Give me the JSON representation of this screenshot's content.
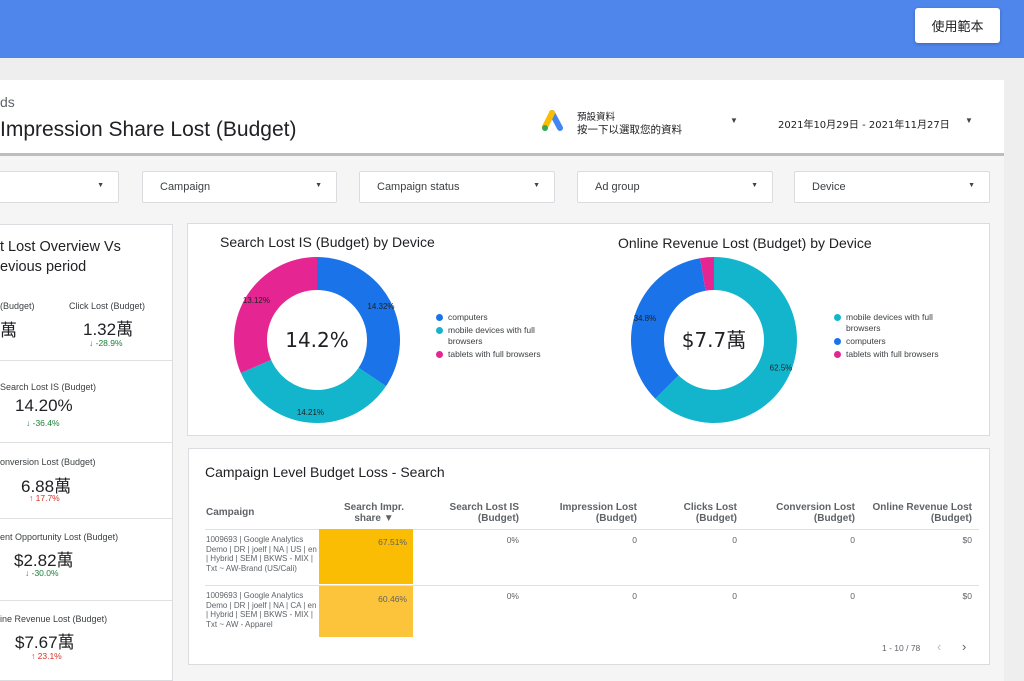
{
  "topbar": {
    "template_button": "使用範本"
  },
  "header": {
    "breadcrumb": "ds",
    "title": "Impression Share Lost (Budget)",
    "data_source": {
      "line1": "預設資料",
      "line2": "按一下以選取您的資料"
    },
    "date_range": "2021年10月29日 - 2021年11月27日"
  },
  "filters": [
    "",
    "Campaign",
    "Campaign status",
    "Ad group",
    "Device"
  ],
  "overview": {
    "title_lines": [
      "t Lost Overview Vs",
      "evious period"
    ],
    "scorecards": [
      {
        "label": "(Budget)",
        "value": "萬",
        "change": "",
        "direction": ""
      },
      {
        "label": "Click Lost (Budget)",
        "value": "1.32萬",
        "change": "-28.9%",
        "direction": "down"
      },
      {
        "label": "Search Lost IS (Budget)",
        "value": "14.20%",
        "change": "-36.4%",
        "direction": "down"
      },
      {
        "label": "onversion Lost (Budget)",
        "value": "6.88萬",
        "change": "17.7%",
        "direction": "up"
      },
      {
        "label": "ent Opportunity Lost (Budget)",
        "value": "$2.82萬",
        "change": "-30.0%",
        "direction": "down"
      },
      {
        "label": "ine Revenue Lost (Budget)",
        "value": "$7.67萬",
        "change": "23.1%",
        "direction": "up"
      }
    ]
  },
  "chart_data": [
    {
      "type": "pie",
      "title": "Search Lost IS (Budget) by Device",
      "center_label": "14.2%",
      "categories": [
        "computers",
        "mobile devices with full browsers",
        "tablets with full browsers"
      ],
      "values": [
        14.32,
        14.21,
        13.12
      ],
      "slice_labels": [
        "14.32%",
        "14.21%",
        "13.12%"
      ],
      "colors": [
        "#1a73e8",
        "#12b5cb",
        "#e52592"
      ],
      "legend": "right"
    },
    {
      "type": "pie",
      "title": "Online Revenue  Lost (Budget) by Device",
      "center_label": "$7.7萬",
      "categories": [
        "mobile devices with full browsers",
        "computers",
        "tablets with full browsers"
      ],
      "values": [
        62.5,
        34.8,
        2.7
      ],
      "slice_labels": [
        "62.5%",
        "34.8%",
        ""
      ],
      "colors": [
        "#12b5cb",
        "#1a73e8",
        "#e52592"
      ],
      "legend": "right"
    }
  ],
  "table": {
    "title": "Campaign Level Budget Loss - Search",
    "columns": [
      "Campaign",
      "Search Impr. share ▼",
      "Search Lost IS (Budget)",
      "Impression Lost (Budget)",
      "Clicks Lost (Budget)",
      "Conversion Lost (Budget)",
      "Online Revenue Lost (Budget)"
    ],
    "rows": [
      {
        "campaign": "1009693 | Google Analytics Demo | DR | joelf | NA | US | en | Hybrid | SEM | BKWS - MIX | Txt ~ AW-Brand (US/Cali)",
        "share": "67.51%",
        "lost_is": "0%",
        "impr_lost": "0",
        "clicks_lost": "0",
        "conv_lost": "0",
        "rev_lost": "$0"
      },
      {
        "campaign": "1009693 | Google Analytics Demo | DR | joelf | NA | CA | en | Hybrid | SEM | BKWS - MIX | Txt ~ AW - Apparel",
        "share": "60.46%",
        "lost_is": "0%",
        "impr_lost": "0",
        "clicks_lost": "0",
        "conv_lost": "0",
        "rev_lost": "$0"
      }
    ],
    "pagination": "1 - 10 / 78"
  }
}
